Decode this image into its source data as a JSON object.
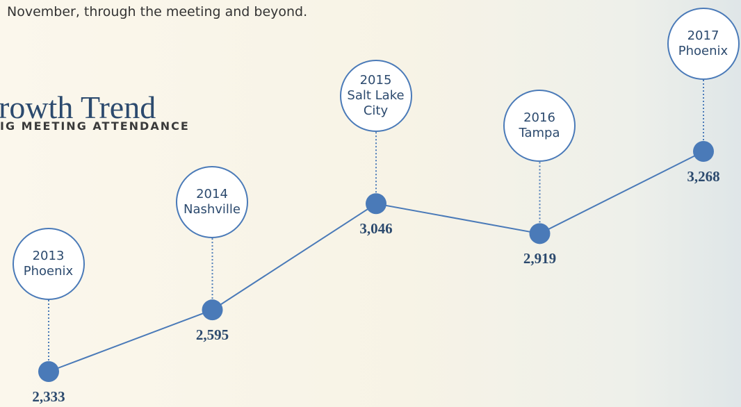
{
  "intro": "November, through the meeting and beyond.",
  "chart_data": {
    "type": "line",
    "title": "rowth Trend",
    "subtitle": "IG MEETING ATTENDANCE",
    "categories": [
      "2013",
      "2014",
      "2015",
      "2016",
      "2017"
    ],
    "locations": [
      "Phoenix",
      "Nashville",
      "Salt Lake City",
      "Tampa",
      "Phoenix"
    ],
    "values": [
      2333,
      2595,
      3046,
      2919,
      3268
    ],
    "value_labels": [
      "2,333",
      "2,595",
      "3,046",
      "2,919",
      "3,268"
    ],
    "color": "#4a7ab8"
  }
}
